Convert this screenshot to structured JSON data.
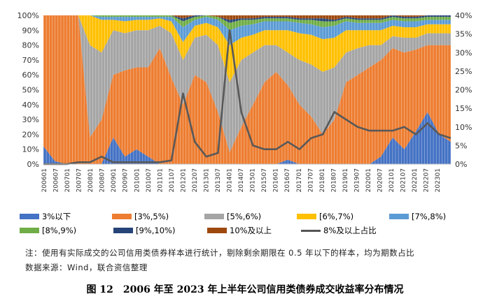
{
  "chart_data": {
    "type": "area",
    "yleft_ticks": [
      "0%",
      "10%",
      "20%",
      "30%",
      "40%",
      "50%",
      "60%",
      "70%",
      "80%",
      "90%",
      "100%"
    ],
    "yright_ticks": [
      "0%",
      "5%",
      "10%",
      "15%",
      "20%",
      "25%",
      "30%",
      "35%",
      "40%"
    ],
    "yright_range": [
      0,
      40
    ],
    "x_tick_labels": [
      "200601",
      "200607",
      "200701",
      "200707",
      "200801",
      "200807",
      "200901",
      "200907",
      "201001",
      "201007",
      "201101",
      "201107",
      "201201",
      "201207",
      "201301",
      "201307",
      "201401",
      "201407",
      "201501",
      "201507",
      "201601",
      "201607",
      "201701",
      "201707",
      "201801",
      "201807",
      "201901",
      "201907",
      "202001",
      "202007",
      "202101",
      "202107",
      "202201",
      "202207",
      "202301"
    ],
    "x": [
      "200601",
      "200607",
      "200701",
      "200707",
      "200801",
      "200807",
      "200901",
      "200907",
      "201001",
      "201007",
      "201101",
      "201107",
      "201201",
      "201207",
      "201301",
      "201307",
      "201401",
      "201407",
      "201501",
      "201507",
      "201601",
      "201607",
      "201701",
      "201707",
      "201801",
      "201807",
      "201901",
      "201907",
      "202001",
      "202007",
      "202101",
      "202107",
      "202201",
      "202207",
      "202301",
      "202306"
    ],
    "series": [
      {
        "name": "3%以下",
        "color": "#4472C4",
        "values": [
          12,
          2,
          0,
          0,
          0,
          0,
          18,
          5,
          10,
          5,
          0,
          0,
          0,
          0,
          0,
          0,
          0,
          0,
          0,
          0,
          0,
          3,
          0,
          0,
          0,
          0,
          0,
          0,
          0,
          5,
          18,
          10,
          22,
          35,
          20,
          15
        ]
      },
      {
        "name": "[3%,5%)",
        "color": "#ED7D31",
        "values": [
          88,
          98,
          100,
          100,
          18,
          30,
          42,
          58,
          55,
          60,
          78,
          58,
          40,
          60,
          55,
          35,
          8,
          25,
          40,
          55,
          62,
          50,
          40,
          32,
          20,
          30,
          55,
          60,
          65,
          65,
          60,
          65,
          55,
          45,
          60,
          65
        ]
      },
      {
        "name": "[5%,6%)",
        "color": "#A5A5A5",
        "values": [
          0,
          0,
          0,
          0,
          62,
          45,
          30,
          25,
          25,
          25,
          15,
          30,
          30,
          25,
          32,
          45,
          47,
          45,
          35,
          25,
          18,
          22,
          30,
          35,
          42,
          35,
          20,
          18,
          15,
          10,
          8,
          10,
          8,
          8,
          8,
          8
        ]
      },
      {
        "name": "[6%,7%)",
        "color": "#FFC000",
        "values": [
          0,
          0,
          0,
          0,
          20,
          22,
          7,
          8,
          7,
          7,
          5,
          8,
          12,
          8,
          8,
          12,
          25,
          15,
          12,
          10,
          10,
          15,
          18,
          20,
          22,
          20,
          15,
          12,
          10,
          10,
          7,
          7,
          7,
          6,
          6,
          6
        ]
      },
      {
        "name": "[7%,8%)",
        "color": "#5B9BD5",
        "values": [
          0,
          0,
          0,
          0,
          0,
          2,
          2,
          3,
          2,
          2,
          1,
          3,
          10,
          4,
          4,
          5,
          10,
          8,
          7,
          6,
          6,
          6,
          7,
          7,
          8,
          8,
          6,
          5,
          5,
          5,
          4,
          4,
          4,
          3,
          3,
          3
        ]
      },
      {
        "name": "[8%,9%)",
        "color": "#70AD47",
        "values": [
          0,
          0,
          0,
          0,
          0,
          1,
          1,
          1,
          1,
          1,
          1,
          1,
          4,
          2,
          1,
          2,
          5,
          4,
          3,
          2,
          2,
          2,
          2,
          3,
          4,
          3,
          2,
          2,
          2,
          2,
          2,
          2,
          2,
          2,
          2,
          2
        ]
      },
      {
        "name": "[9%,10%)",
        "color": "#264478",
        "values": [
          0,
          0,
          0,
          0,
          0,
          0,
          0,
          0,
          0,
          0,
          0,
          0,
          2,
          1,
          0,
          0,
          2,
          1,
          1,
          1,
          1,
          1,
          1,
          1,
          2,
          1,
          1,
          1,
          1,
          1,
          1,
          1,
          1,
          1,
          1,
          1
        ]
      },
      {
        "name": "10%及以上",
        "color": "#9E480E",
        "values": [
          0,
          0,
          0,
          0,
          0,
          0,
          0,
          0,
          0,
          0,
          0,
          0,
          2,
          0,
          0,
          1,
          3,
          2,
          2,
          1,
          1,
          1,
          2,
          2,
          2,
          3,
          1,
          2,
          2,
          2,
          1,
          1,
          1,
          1,
          1,
          1
        ]
      }
    ],
    "line_series": {
      "name": "8%及以上占比",
      "color": "#595959",
      "values": [
        0,
        0,
        0,
        0.5,
        0.5,
        2,
        0.5,
        0.5,
        0.5,
        0.5,
        0.5,
        1,
        19,
        6,
        2,
        3,
        36,
        14,
        5,
        4,
        4,
        6,
        4,
        7,
        8,
        14,
        12,
        10,
        9,
        9,
        9,
        10,
        8,
        11,
        8,
        7
      ]
    }
  },
  "legend": [
    [
      "3%以下",
      "[3%,5%)",
      "[5%,6%)",
      "[6%,7%)",
      "[7%,8%)"
    ],
    [
      "[8%,9%)",
      "[9%,10%)",
      "10%及以上",
      "8%及以上占比"
    ]
  ],
  "note": "注：使用有实际成交的公司信用类债券样本进行统计，剔除剩余期限在 0.5 年以下的样本，均为期数占比",
  "source": "数据来源：Wind，联合资信整理",
  "caption": "图 12　2006 年至 2023 年上半年公司信用类债券成交收益率分布情况"
}
